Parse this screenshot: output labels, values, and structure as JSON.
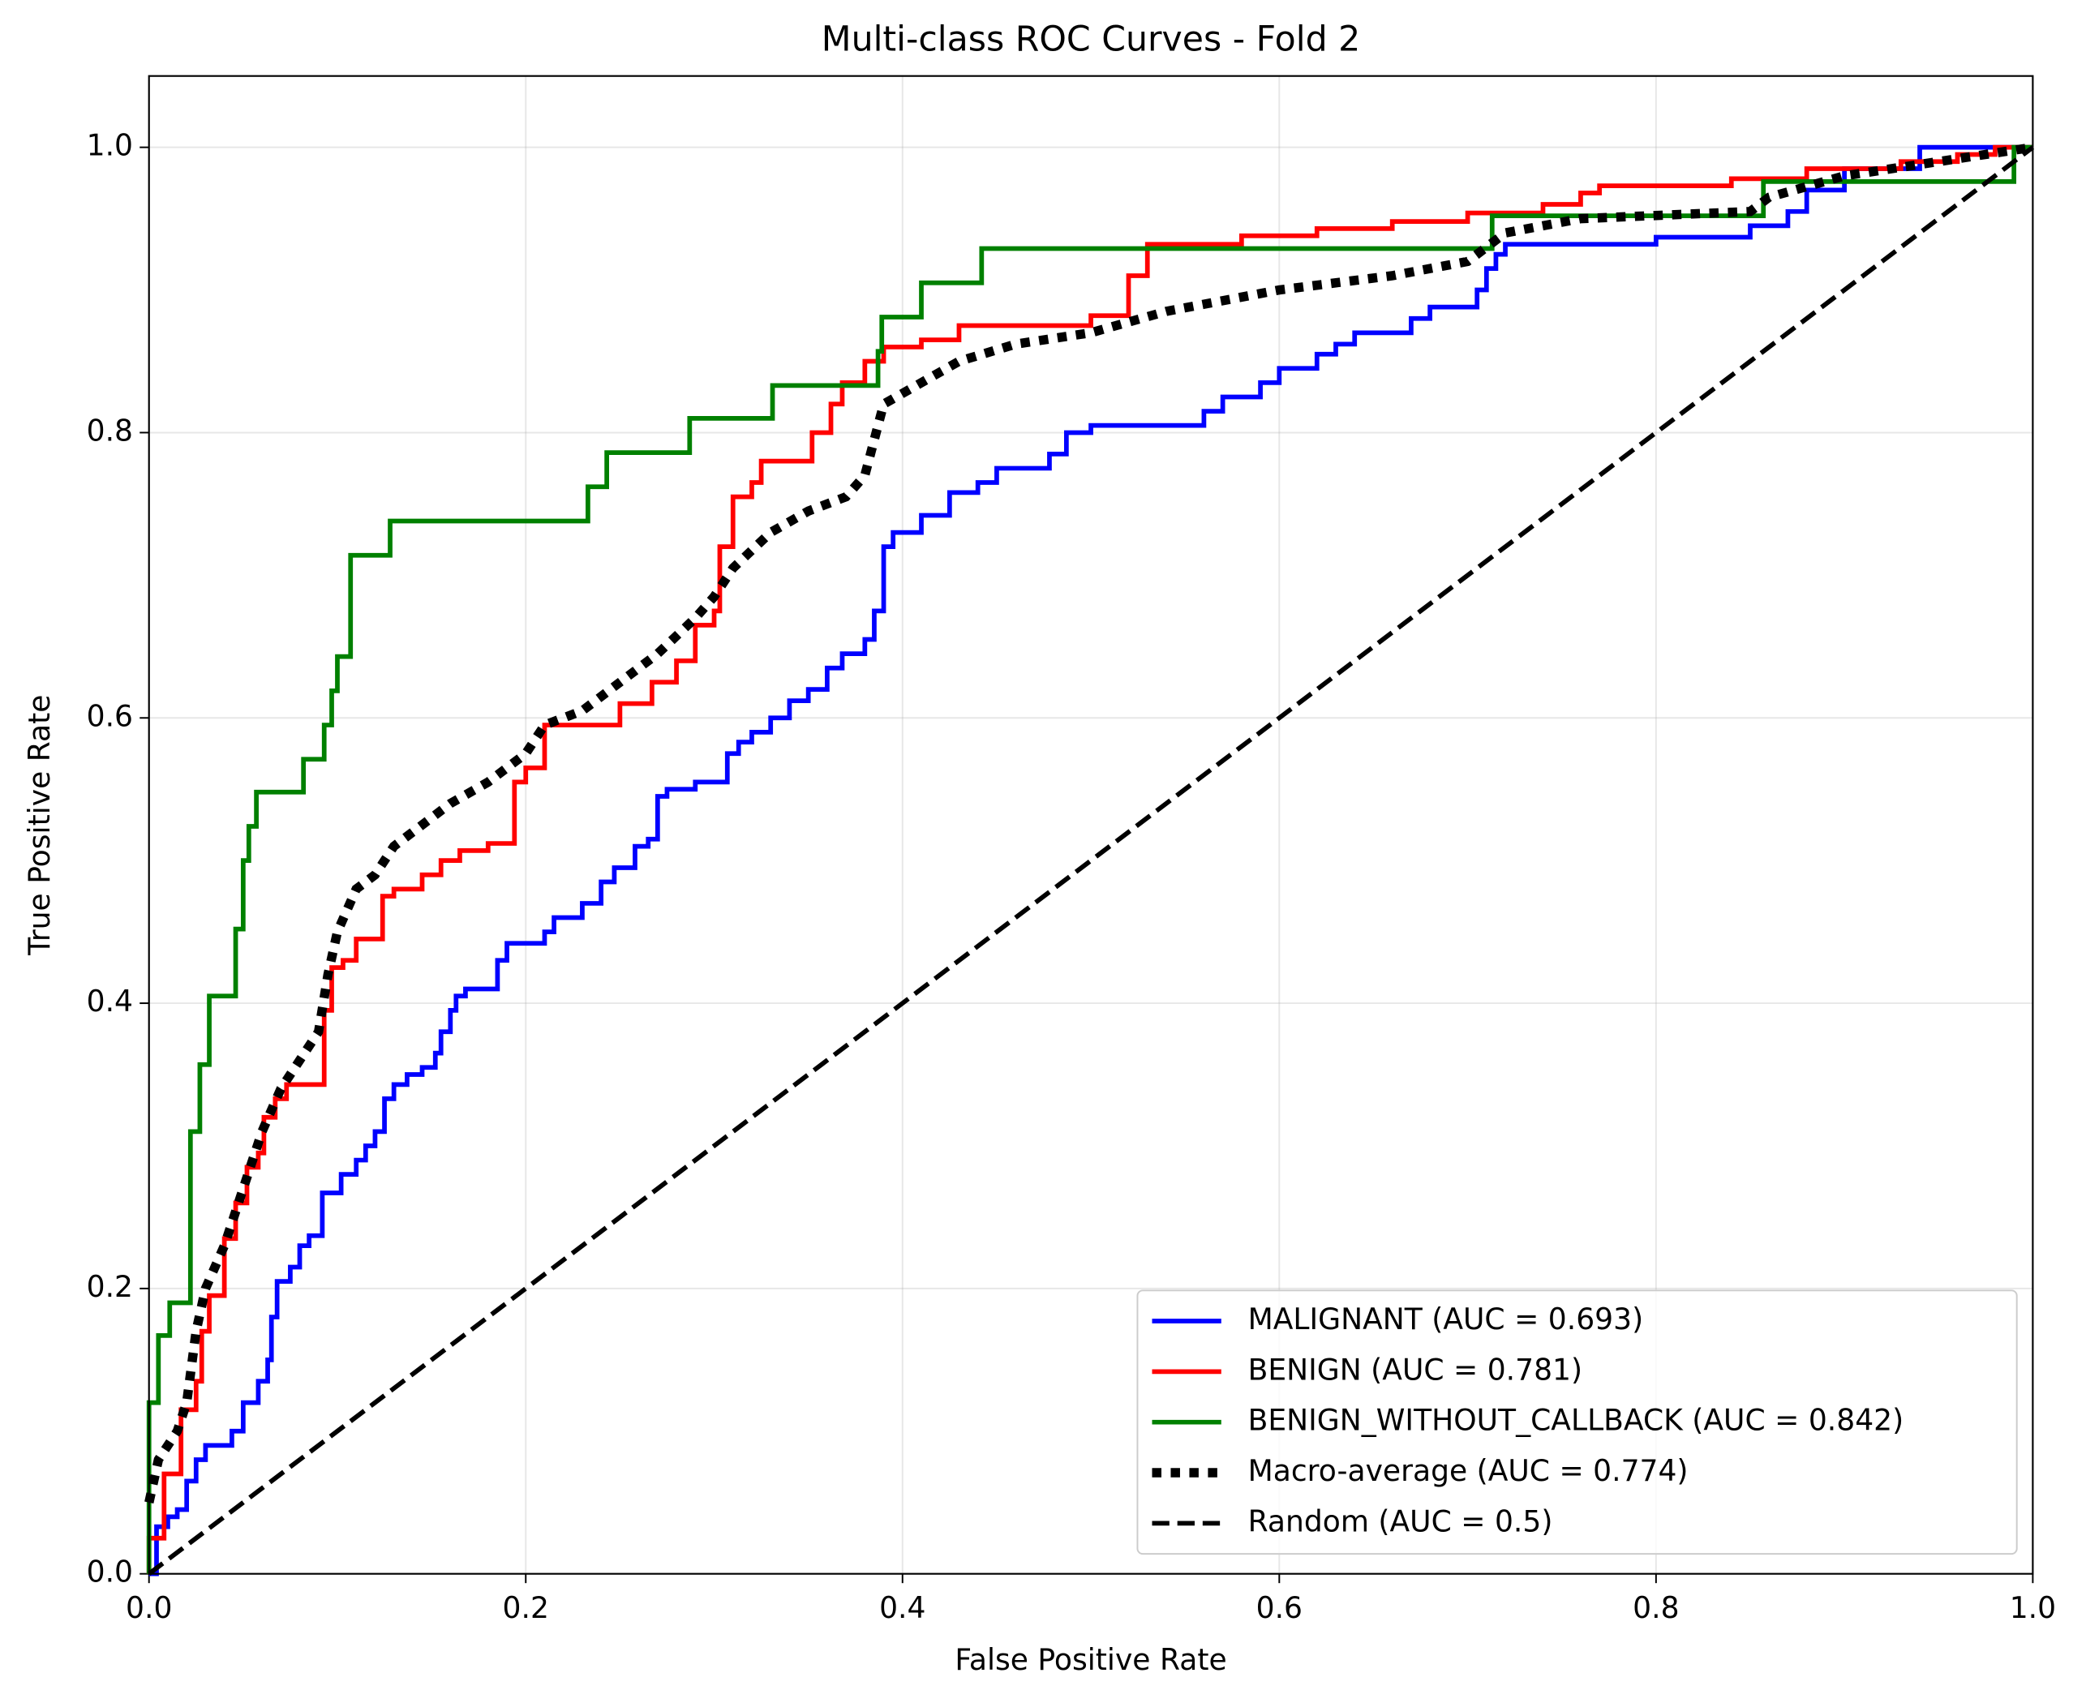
{
  "chart_data": {
    "type": "line",
    "title": "Multi-class ROC Curves - Fold 2",
    "xlabel": "False Positive Rate",
    "ylabel": "True Positive Rate",
    "xlim": [
      0,
      1
    ],
    "ylim": [
      0,
      1.05
    ],
    "xticks": [
      {
        "value": 0,
        "label": "0.0"
      },
      0.2,
      0.4,
      0.6,
      0.8,
      {
        "value": 1,
        "label": "1.0"
      }
    ],
    "yticks": [
      {
        "value": 0,
        "label": "0.0"
      },
      0.2,
      0.4,
      0.6,
      0.8,
      {
        "value": 1,
        "label": "1.0"
      }
    ],
    "grid": true,
    "legend": "lower right",
    "series": [
      {
        "name": "MALIGNANT (AUC = 0.693)",
        "color": "#0000ff",
        "linestyle": "solid",
        "x": [
          0,
          0.004,
          0.004,
          0.01,
          0.01,
          0.015,
          0.015,
          0.02,
          0.02,
          0.025,
          0.025,
          0.03,
          0.03,
          0.044,
          0.044,
          0.05,
          0.05,
          0.058,
          0.058,
          0.063,
          0.063,
          0.065,
          0.065,
          0.068,
          0.068,
          0.075,
          0.075,
          0.08,
          0.08,
          0.085,
          0.085,
          0.092,
          0.092,
          0.102,
          0.102,
          0.11,
          0.11,
          0.115,
          0.115,
          0.12,
          0.12,
          0.125,
          0.125,
          0.13,
          0.13,
          0.137,
          0.137,
          0.145,
          0.145,
          0.152,
          0.152,
          0.155,
          0.155,
          0.16,
          0.16,
          0.163,
          0.163,
          0.168,
          0.168,
          0.185,
          0.185,
          0.19,
          0.19,
          0.21,
          0.21,
          0.215,
          0.215,
          0.23,
          0.23,
          0.24,
          0.24,
          0.247,
          0.247,
          0.258,
          0.258,
          0.265,
          0.265,
          0.27,
          0.27,
          0.275,
          0.275,
          0.29,
          0.29,
          0.307,
          0.307,
          0.313,
          0.313,
          0.32,
          0.32,
          0.33,
          0.33,
          0.34,
          0.34,
          0.35,
          0.35,
          0.36,
          0.36,
          0.368,
          0.368,
          0.38,
          0.38,
          0.385,
          0.385,
          0.39,
          0.39,
          0.395,
          0.395,
          0.41,
          0.41,
          0.425,
          0.425,
          0.44,
          0.44,
          0.45,
          0.45,
          0.478,
          0.478,
          0.487,
          0.487,
          0.5,
          0.5,
          0.56,
          0.56,
          0.57,
          0.57,
          0.59,
          0.59,
          0.6,
          0.6,
          0.62,
          0.62,
          0.63,
          0.63,
          0.64,
          0.64,
          0.67,
          0.67,
          0.68,
          0.68,
          0.705,
          0.705,
          0.71,
          0.71,
          0.715,
          0.715,
          0.72,
          0.72,
          0.8,
          0.8,
          0.85,
          0.85,
          0.87,
          0.87,
          0.88,
          0.88,
          0.9,
          0.9,
          0.94,
          0.94,
          1
        ],
        "values": [
          0,
          0,
          0.033,
          0.033,
          0.04,
          0.04,
          0.045,
          0.045,
          0.065,
          0.065,
          0.08,
          0.08,
          0.09,
          0.09,
          0.1,
          0.1,
          0.12,
          0.12,
          0.135,
          0.135,
          0.15,
          0.15,
          0.18,
          0.18,
          0.205,
          0.205,
          0.215,
          0.215,
          0.23,
          0.23,
          0.237,
          0.237,
          0.267,
          0.267,
          0.28,
          0.28,
          0.29,
          0.29,
          0.3,
          0.3,
          0.31,
          0.31,
          0.333,
          0.333,
          0.343,
          0.343,
          0.35,
          0.35,
          0.355,
          0.355,
          0.365,
          0.365,
          0.38,
          0.38,
          0.395,
          0.395,
          0.405,
          0.405,
          0.41,
          0.41,
          0.43,
          0.43,
          0.442,
          0.442,
          0.45,
          0.45,
          0.46,
          0.46,
          0.47,
          0.47,
          0.485,
          0.485,
          0.495,
          0.495,
          0.51,
          0.51,
          0.515,
          0.515,
          0.545,
          0.545,
          0.55,
          0.55,
          0.555,
          0.555,
          0.575,
          0.575,
          0.583,
          0.583,
          0.59,
          0.59,
          0.6,
          0.6,
          0.612,
          0.612,
          0.62,
          0.62,
          0.635,
          0.635,
          0.645,
          0.645,
          0.655,
          0.655,
          0.675,
          0.675,
          0.72,
          0.72,
          0.73,
          0.73,
          0.742,
          0.742,
          0.758,
          0.758,
          0.765,
          0.765,
          0.775,
          0.775,
          0.785,
          0.785,
          0.8,
          0.8,
          0.805,
          0.805,
          0.815,
          0.815,
          0.825,
          0.825,
          0.835,
          0.835,
          0.845,
          0.845,
          0.855,
          0.855,
          0.862,
          0.862,
          0.87,
          0.87,
          0.88,
          0.88,
          0.888,
          0.888,
          0.9,
          0.9,
          0.915,
          0.915,
          0.925,
          0.925,
          0.932,
          0.932,
          0.937,
          0.937,
          0.945,
          0.945,
          0.955,
          0.955,
          0.97,
          0.97,
          0.985,
          0.985,
          1,
          1
        ]
      },
      {
        "name": "BENIGN (AUC = 0.781)",
        "color": "#ff0000",
        "linestyle": "solid",
        "x": [
          0,
          0,
          0.008,
          0.008,
          0.017,
          0.017,
          0.025,
          0.025,
          0.028,
          0.028,
          0.032,
          0.032,
          0.04,
          0.04,
          0.046,
          0.046,
          0.052,
          0.052,
          0.058,
          0.058,
          0.061,
          0.061,
          0.067,
          0.067,
          0.073,
          0.073,
          0.093,
          0.093,
          0.097,
          0.097,
          0.103,
          0.103,
          0.11,
          0.11,
          0.124,
          0.124,
          0.13,
          0.13,
          0.145,
          0.145,
          0.155,
          0.155,
          0.165,
          0.165,
          0.18,
          0.18,
          0.194,
          0.194,
          0.2,
          0.2,
          0.21,
          0.21,
          0.25,
          0.25,
          0.267,
          0.267,
          0.28,
          0.28,
          0.29,
          0.29,
          0.3,
          0.3,
          0.303,
          0.303,
          0.31,
          0.31,
          0.32,
          0.32,
          0.325,
          0.325,
          0.352,
          0.352,
          0.362,
          0.362,
          0.368,
          0.368,
          0.38,
          0.38,
          0.39,
          0.39,
          0.41,
          0.41,
          0.43,
          0.43,
          0.5,
          0.5,
          0.52,
          0.52,
          0.53,
          0.53,
          0.58,
          0.58,
          0.62,
          0.62,
          0.66,
          0.66,
          0.7,
          0.7,
          0.74,
          0.74,
          0.76,
          0.76,
          0.77,
          0.77,
          0.84,
          0.84,
          0.88,
          0.88,
          0.93,
          0.93,
          0.96,
          0.96,
          0.98,
          0.98,
          1
        ],
        "values": [
          0,
          0.025,
          0.025,
          0.07,
          0.07,
          0.115,
          0.115,
          0.135,
          0.135,
          0.17,
          0.17,
          0.195,
          0.195,
          0.235,
          0.235,
          0.26,
          0.26,
          0.285,
          0.285,
          0.295,
          0.295,
          0.32,
          0.32,
          0.333,
          0.333,
          0.343,
          0.343,
          0.395,
          0.395,
          0.425,
          0.425,
          0.43,
          0.43,
          0.445,
          0.445,
          0.475,
          0.475,
          0.48,
          0.48,
          0.49,
          0.49,
          0.5,
          0.5,
          0.507,
          0.507,
          0.512,
          0.512,
          0.555,
          0.555,
          0.565,
          0.565,
          0.595,
          0.595,
          0.61,
          0.61,
          0.625,
          0.625,
          0.64,
          0.64,
          0.665,
          0.665,
          0.675,
          0.675,
          0.72,
          0.72,
          0.755,
          0.755,
          0.765,
          0.765,
          0.78,
          0.78,
          0.8,
          0.8,
          0.82,
          0.82,
          0.835,
          0.835,
          0.85,
          0.85,
          0.86,
          0.86,
          0.865,
          0.865,
          0.875,
          0.875,
          0.882,
          0.882,
          0.91,
          0.91,
          0.932,
          0.932,
          0.938,
          0.938,
          0.943,
          0.943,
          0.948,
          0.948,
          0.954,
          0.954,
          0.96,
          0.96,
          0.968,
          0.968,
          0.973,
          0.973,
          0.978,
          0.978,
          0.985,
          0.985,
          0.99,
          0.99,
          0.995,
          0.995,
          1,
          1
        ]
      },
      {
        "name": "BENIGN_WITHOUT_CALLBACK (AUC = 0.842)",
        "color": "#008000",
        "linestyle": "solid",
        "x": [
          0,
          0,
          0.005,
          0.005,
          0.011,
          0.011,
          0.022,
          0.022,
          0.027,
          0.027,
          0.032,
          0.032,
          0.046,
          0.046,
          0.05,
          0.05,
          0.053,
          0.053,
          0.057,
          0.057,
          0.082,
          0.082,
          0.093,
          0.093,
          0.097,
          0.097,
          0.1,
          0.1,
          0.107,
          0.107,
          0.128,
          0.128,
          0.233,
          0.233,
          0.243,
          0.243,
          0.287,
          0.287,
          0.331,
          0.331,
          0.387,
          0.387,
          0.389,
          0.389,
          0.41,
          0.41,
          0.442,
          0.442,
          0.713,
          0.713,
          0.857,
          0.857,
          0.99,
          0.99,
          1
        ],
        "values": [
          0,
          0.12,
          0.12,
          0.167,
          0.167,
          0.19,
          0.19,
          0.31,
          0.31,
          0.357,
          0.357,
          0.405,
          0.405,
          0.452,
          0.452,
          0.5,
          0.5,
          0.524,
          0.524,
          0.548,
          0.548,
          0.571,
          0.571,
          0.595,
          0.595,
          0.619,
          0.619,
          0.643,
          0.643,
          0.714,
          0.714,
          0.738,
          0.738,
          0.762,
          0.762,
          0.786,
          0.786,
          0.81,
          0.81,
          0.833,
          0.833,
          0.857,
          0.857,
          0.881,
          0.881,
          0.905,
          0.905,
          0.929,
          0.929,
          0.952,
          0.952,
          0.976,
          0.976,
          1,
          1
        ]
      },
      {
        "name": "Macro-average (AUC = 0.774)",
        "color": "#000000",
        "linestyle": "dotted",
        "x": [
          0,
          0.005,
          0.015,
          0.02,
          0.025,
          0.03,
          0.04,
          0.05,
          0.06,
          0.07,
          0.08,
          0.09,
          0.095,
          0.1,
          0.11,
          0.12,
          0.13,
          0.14,
          0.16,
          0.18,
          0.2,
          0.21,
          0.23,
          0.25,
          0.27,
          0.29,
          0.3,
          0.31,
          0.33,
          0.35,
          0.37,
          0.38,
          0.39,
          0.41,
          0.43,
          0.46,
          0.5,
          0.54,
          0.6,
          0.66,
          0.7,
          0.71,
          0.72,
          0.76,
          0.85,
          0.86,
          0.9,
          0.95,
          1
        ],
        "values": [
          0.05,
          0.08,
          0.1,
          0.12,
          0.17,
          0.2,
          0.23,
          0.27,
          0.31,
          0.34,
          0.36,
          0.38,
          0.42,
          0.45,
          0.48,
          0.49,
          0.51,
          0.52,
          0.54,
          0.555,
          0.575,
          0.595,
          0.605,
          0.625,
          0.645,
          0.67,
          0.685,
          0.705,
          0.73,
          0.745,
          0.755,
          0.77,
          0.82,
          0.835,
          0.85,
          0.862,
          0.87,
          0.885,
          0.9,
          0.91,
          0.92,
          0.93,
          0.94,
          0.95,
          0.955,
          0.965,
          0.98,
          0.99,
          1
        ]
      },
      {
        "name": "Random (AUC = 0.5)",
        "color": "#000000",
        "linestyle": "dashed",
        "x": [
          0,
          1
        ],
        "values": [
          0,
          1
        ]
      }
    ]
  }
}
